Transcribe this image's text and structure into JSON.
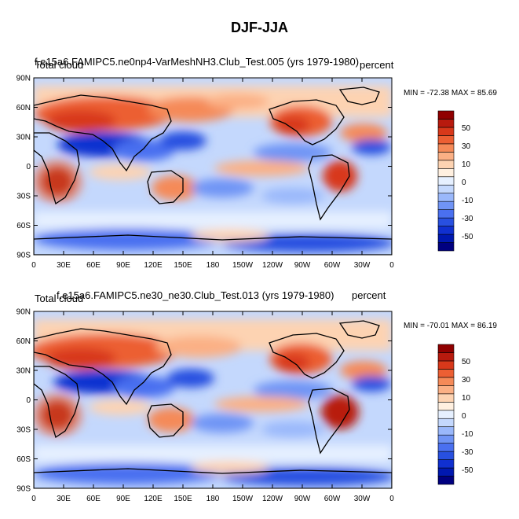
{
  "figure_title": "DJF-JJA",
  "colorbar": {
    "levels": [
      "50",
      "30",
      "10",
      "0",
      "-10",
      "-30",
      "-50"
    ],
    "colors": [
      "#000080",
      "#0018b0",
      "#1030d0",
      "#2850e0",
      "#4a70f0",
      "#7094f5",
      "#9ab8fb",
      "#c4d8fd",
      "#e6f0ff",
      "#fff0e0",
      "#fdd3b2",
      "#fbb085",
      "#f58a58",
      "#ec5f33",
      "#d8381a",
      "#b81a0e",
      "#900000"
    ]
  },
  "chart_data": [
    {
      "type": "heatmap",
      "variable": "Total cloud",
      "case": "f.e15a6.FAMIPC5.ne0np4-VarMeshNH3.Club_Test.005 (yrs 1979-1980)",
      "units": "percent",
      "stats": "MIN = -72.38 MAX =  85.69",
      "x_ticks": [
        "0",
        "30E",
        "60E",
        "90E",
        "120E",
        "150E",
        "180",
        "150W",
        "120W",
        "90W",
        "60W",
        "30W",
        "0"
      ],
      "y_ticks": [
        "90N",
        "60N",
        "30N",
        "0",
        "30S",
        "60S",
        "90S"
      ]
    },
    {
      "type": "heatmap",
      "variable": "Total cloud",
      "case": "f.e15a6.FAMIPC5.ne30_ne30.Club_Test.013 (yrs 1979-1980)",
      "units": "percent",
      "stats": "MIN = -70.01 MAX =  86.19",
      "x_ticks": [
        "0",
        "30E",
        "60E",
        "90E",
        "120E",
        "150E",
        "180",
        "150W",
        "120W",
        "90W",
        "60W",
        "30W",
        "0"
      ],
      "y_ticks": [
        "90N",
        "60N",
        "30N",
        "0",
        "30S",
        "60S",
        "90S"
      ]
    }
  ]
}
